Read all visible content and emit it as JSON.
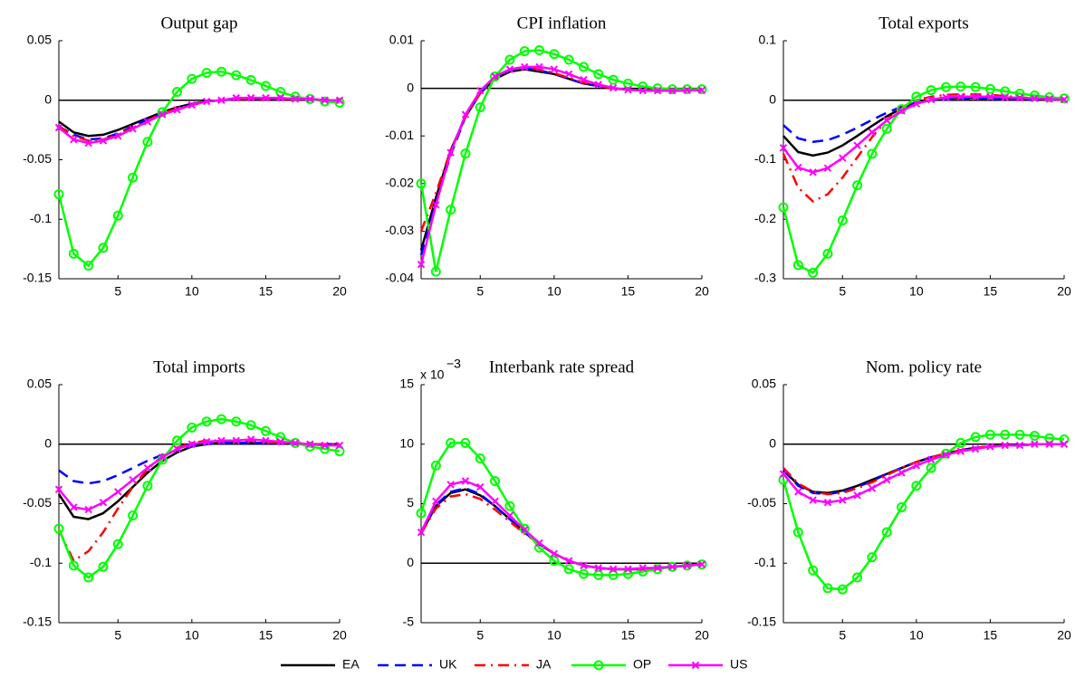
{
  "chart_data": [
    {
      "type": "line",
      "title": "Output gap",
      "x": [
        1,
        2,
        3,
        4,
        5,
        6,
        7,
        8,
        9,
        10,
        11,
        12,
        13,
        14,
        15,
        16,
        17,
        18,
        19,
        20
      ],
      "xlim": [
        1,
        20
      ],
      "xticks": [
        5,
        10,
        15,
        20
      ],
      "ylim": [
        -0.15,
        0.05
      ],
      "yticks": [
        -0.15,
        -0.1,
        -0.05,
        0,
        0.05
      ],
      "series": [
        {
          "values": [
            -0.018,
            -0.027,
            -0.03,
            -0.029,
            -0.025,
            -0.02,
            -0.015,
            -0.01,
            -0.006,
            -0.003,
            -0.001,
            0,
            0.001,
            0.001,
            0.001,
            0.001,
            0.001,
            0.001,
            0,
            0
          ]
        },
        {
          "values": [
            -0.022,
            -0.029,
            -0.033,
            -0.032,
            -0.028,
            -0.022,
            -0.016,
            -0.011,
            -0.007,
            -0.004,
            -0.001,
            0,
            0.001,
            0.001,
            0.001,
            0.001,
            0.001,
            0.001,
            0,
            0
          ]
        },
        {
          "values": [
            -0.022,
            -0.03,
            -0.034,
            -0.033,
            -0.029,
            -0.023,
            -0.017,
            -0.011,
            -0.007,
            -0.004,
            -0.001,
            0,
            0.001,
            0.001,
            0.001,
            0.001,
            0.001,
            0.001,
            0,
            0
          ]
        },
        {
          "values": [
            -0.079,
            -0.129,
            -0.139,
            -0.124,
            -0.097,
            -0.065,
            -0.035,
            -0.01,
            0.007,
            0.018,
            0.023,
            0.024,
            0.021,
            0.017,
            0.012,
            0.007,
            0.003,
            0.001,
            -0.001,
            -0.002
          ]
        },
        {
          "values": [
            -0.023,
            -0.033,
            -0.036,
            -0.034,
            -0.03,
            -0.024,
            -0.018,
            -0.012,
            -0.008,
            -0.004,
            -0.001,
            0,
            0.002,
            0.002,
            0.002,
            0.002,
            0.001,
            0.001,
            0,
            0
          ]
        }
      ]
    },
    {
      "type": "line",
      "title": "CPI inflation",
      "x": [
        1,
        2,
        3,
        4,
        5,
        6,
        7,
        8,
        9,
        10,
        11,
        12,
        13,
        14,
        15,
        16,
        17,
        18,
        19,
        20
      ],
      "xlim": [
        1,
        20
      ],
      "xticks": [
        5,
        10,
        15,
        20
      ],
      "ylim": [
        -0.04,
        0.01
      ],
      "yticks": [
        -0.04,
        -0.03,
        -0.02,
        -0.01,
        0,
        0.01
      ],
      "series": [
        {
          "values": [
            -0.034,
            -0.023,
            -0.013,
            -0.006,
            -0.001,
            0.002,
            0.0035,
            0.004,
            0.0035,
            0.003,
            0.002,
            0.001,
            0.0005,
            0,
            -0.0003,
            -0.0004,
            -0.0005,
            -0.0005,
            -0.0004,
            -0.0004
          ]
        },
        {
          "values": [
            -0.035,
            -0.024,
            -0.014,
            -0.006,
            -0.001,
            0.002,
            0.0038,
            0.0042,
            0.0038,
            0.003,
            0.002,
            0.001,
            0.0005,
            0,
            -0.0003,
            -0.0004,
            -0.0005,
            -0.0005,
            -0.0004,
            -0.0004
          ]
        },
        {
          "values": [
            -0.03,
            -0.022,
            -0.013,
            -0.006,
            -0.001,
            0.002,
            0.004,
            0.0043,
            0.004,
            0.0032,
            0.0022,
            0.0012,
            0.0005,
            0,
            -0.0003,
            -0.0004,
            -0.0005,
            -0.0005,
            -0.0004,
            -0.0004
          ]
        },
        {
          "values": [
            -0.02,
            -0.0385,
            -0.0255,
            -0.0137,
            -0.004,
            0.0025,
            0.006,
            0.0078,
            0.008,
            0.0072,
            0.006,
            0.0045,
            0.003,
            0.0018,
            0.001,
            0.0004,
            0,
            -0.0002,
            -0.0002,
            -0.0002
          ]
        },
        {
          "values": [
            -0.037,
            -0.0245,
            -0.0135,
            -0.0055,
            -0.0005,
            0.0025,
            0.004,
            0.0045,
            0.0045,
            0.004,
            0.003,
            0.0018,
            0.0008,
            0.0001,
            -0.0003,
            -0.0005,
            -0.0005,
            -0.0005,
            -0.0004,
            -0.0004
          ]
        }
      ]
    },
    {
      "type": "line",
      "title": "Total exports",
      "x": [
        1,
        2,
        3,
        4,
        5,
        6,
        7,
        8,
        9,
        10,
        11,
        12,
        13,
        14,
        15,
        16,
        17,
        18,
        19,
        20
      ],
      "xlim": [
        1,
        20
      ],
      "xticks": [
        5,
        10,
        15,
        20
      ],
      "ylim": [
        -0.3,
        0.1
      ],
      "yticks": [
        -0.3,
        -0.2,
        -0.1,
        0,
        0.1
      ],
      "series": [
        {
          "values": [
            -0.06,
            -0.087,
            -0.093,
            -0.088,
            -0.076,
            -0.06,
            -0.043,
            -0.027,
            -0.014,
            -0.005,
            0,
            0.003,
            0.004,
            0.004,
            0.004,
            0.003,
            0.002,
            0.002,
            0.001,
            0.001
          ]
        },
        {
          "values": [
            -0.042,
            -0.064,
            -0.07,
            -0.067,
            -0.058,
            -0.046,
            -0.033,
            -0.021,
            -0.011,
            -0.004,
            0,
            0.002,
            0.003,
            0.003,
            0.003,
            0.002,
            0.002,
            0.001,
            0.001,
            0.001
          ]
        },
        {
          "values": [
            -0.09,
            -0.147,
            -0.17,
            -0.158,
            -0.13,
            -0.096,
            -0.062,
            -0.033,
            -0.012,
            0,
            0.006,
            0.009,
            0.01,
            0.01,
            0.009,
            0.007,
            0.005,
            0.003,
            0.002,
            0.001
          ]
        },
        {
          "values": [
            -0.18,
            -0.277,
            -0.29,
            -0.258,
            -0.202,
            -0.143,
            -0.09,
            -0.048,
            -0.015,
            0.006,
            0.017,
            0.022,
            0.023,
            0.022,
            0.019,
            0.015,
            0.011,
            0.008,
            0.005,
            0.003
          ]
        },
        {
          "values": [
            -0.08,
            -0.113,
            -0.121,
            -0.114,
            -0.097,
            -0.076,
            -0.054,
            -0.034,
            -0.018,
            -0.006,
            0.001,
            0.005,
            0.006,
            0.006,
            0.006,
            0.005,
            0.004,
            0.003,
            0.002,
            0.001
          ]
        }
      ]
    },
    {
      "type": "line",
      "title": "Total imports",
      "x": [
        1,
        2,
        3,
        4,
        5,
        6,
        7,
        8,
        9,
        10,
        11,
        12,
        13,
        14,
        15,
        16,
        17,
        18,
        19,
        20
      ],
      "xlim": [
        1,
        20
      ],
      "xticks": [
        5,
        10,
        15,
        20
      ],
      "ylim": [
        -0.15,
        0.05
      ],
      "yticks": [
        -0.15,
        -0.1,
        -0.05,
        0,
        0.05
      ],
      "series": [
        {
          "values": [
            -0.042,
            -0.061,
            -0.063,
            -0.058,
            -0.048,
            -0.036,
            -0.024,
            -0.014,
            -0.007,
            -0.002,
            0,
            0.001,
            0.001,
            0.001,
            0.001,
            0.001,
            0,
            0,
            0,
            0
          ]
        },
        {
          "values": [
            -0.022,
            -0.031,
            -0.033,
            -0.031,
            -0.026,
            -0.02,
            -0.014,
            -0.009,
            -0.005,
            -0.002,
            0,
            0.001,
            0.001,
            0.001,
            0.001,
            0.001,
            0,
            0,
            0,
            0
          ]
        },
        {
          "values": [
            -0.072,
            -0.098,
            -0.09,
            -0.074,
            -0.054,
            -0.036,
            -0.021,
            -0.01,
            -0.003,
            0.001,
            0.003,
            0.003,
            0.003,
            0.003,
            0.002,
            0.001,
            0.001,
            0,
            0,
            0
          ]
        },
        {
          "values": [
            -0.071,
            -0.102,
            -0.112,
            -0.103,
            -0.084,
            -0.06,
            -0.035,
            -0.013,
            0.003,
            0.014,
            0.019,
            0.021,
            0.019,
            0.016,
            0.011,
            0.006,
            0.001,
            -0.002,
            -0.004,
            -0.006
          ]
        },
        {
          "values": [
            -0.038,
            -0.053,
            -0.055,
            -0.049,
            -0.04,
            -0.03,
            -0.02,
            -0.011,
            -0.004,
            0,
            0.002,
            0.003,
            0.003,
            0.004,
            0.003,
            0.002,
            0.001,
            0,
            -0.001,
            -0.001
          ]
        }
      ]
    },
    {
      "type": "line",
      "title": "Interbank rate spread",
      "y_multiplier": "x 10",
      "y_multiplier_exponent": "−3",
      "x": [
        1,
        2,
        3,
        4,
        5,
        6,
        7,
        8,
        9,
        10,
        11,
        12,
        13,
        14,
        15,
        16,
        17,
        18,
        19,
        20
      ],
      "xlim": [
        1,
        20
      ],
      "xticks": [
        5,
        10,
        15,
        20
      ],
      "ylim": [
        -5,
        15
      ],
      "yticks": [
        -5,
        0,
        5,
        10,
        15
      ],
      "series": [
        {
          "values": [
            2.5,
            4.8,
            5.9,
            6.2,
            5.7,
            4.8,
            3.7,
            2.6,
            1.6,
            0.8,
            0.2,
            -0.2,
            -0.4,
            -0.5,
            -0.5,
            -0.5,
            -0.4,
            -0.3,
            -0.2,
            -0.1
          ]
        },
        {
          "values": [
            2.5,
            4.9,
            6.0,
            6.3,
            5.8,
            4.8,
            3.7,
            2.6,
            1.6,
            0.8,
            0.2,
            -0.2,
            -0.4,
            -0.5,
            -0.5,
            -0.5,
            -0.4,
            -0.3,
            -0.2,
            -0.1
          ]
        },
        {
          "values": [
            2.5,
            4.6,
            5.6,
            5.8,
            5.4,
            4.5,
            3.5,
            2.5,
            1.6,
            0.8,
            0.2,
            -0.2,
            -0.4,
            -0.5,
            -0.5,
            -0.5,
            -0.4,
            -0.3,
            -0.2,
            -0.1
          ]
        },
        {
          "values": [
            4.2,
            8.2,
            10.1,
            10.1,
            8.8,
            6.9,
            4.8,
            2.9,
            1.3,
            0.2,
            -0.5,
            -0.9,
            -1.0,
            -1.0,
            -0.9,
            -0.7,
            -0.5,
            -0.3,
            -0.2,
            -0.1
          ]
        },
        {
          "values": [
            2.6,
            5.2,
            6.6,
            6.9,
            6.4,
            5.2,
            4.0,
            2.8,
            1.7,
            0.8,
            0.2,
            -0.2,
            -0.4,
            -0.5,
            -0.5,
            -0.4,
            -0.4,
            -0.3,
            -0.2,
            -0.1
          ]
        }
      ]
    },
    {
      "type": "line",
      "title": "Nom. policy rate",
      "x": [
        1,
        2,
        3,
        4,
        5,
        6,
        7,
        8,
        9,
        10,
        11,
        12,
        13,
        14,
        15,
        16,
        17,
        18,
        19,
        20
      ],
      "xlim": [
        1,
        20
      ],
      "xticks": [
        5,
        10,
        15,
        20
      ],
      "ylim": [
        -0.15,
        0.05
      ],
      "yticks": [
        -0.15,
        -0.1,
        -0.05,
        0,
        0.05
      ],
      "series": [
        {
          "values": [
            -0.022,
            -0.034,
            -0.04,
            -0.041,
            -0.039,
            -0.035,
            -0.03,
            -0.025,
            -0.02,
            -0.015,
            -0.011,
            -0.008,
            -0.005,
            -0.003,
            -0.002,
            -0.001,
            -0.001,
            0,
            0,
            0
          ]
        },
        {
          "values": [
            -0.022,
            -0.035,
            -0.041,
            -0.042,
            -0.04,
            -0.036,
            -0.031,
            -0.025,
            -0.02,
            -0.015,
            -0.011,
            -0.008,
            -0.005,
            -0.003,
            -0.002,
            -0.001,
            -0.001,
            0,
            0,
            0
          ]
        },
        {
          "values": [
            -0.02,
            -0.033,
            -0.04,
            -0.042,
            -0.041,
            -0.037,
            -0.032,
            -0.026,
            -0.02,
            -0.015,
            -0.011,
            -0.008,
            -0.005,
            -0.003,
            -0.002,
            -0.001,
            -0.001,
            0,
            0,
            0
          ]
        },
        {
          "values": [
            -0.03,
            -0.074,
            -0.106,
            -0.121,
            -0.122,
            -0.112,
            -0.095,
            -0.074,
            -0.053,
            -0.035,
            -0.02,
            -0.008,
            0.001,
            0.006,
            0.008,
            0.008,
            0.008,
            0.007,
            0.005,
            0.004
          ]
        },
        {
          "values": [
            -0.025,
            -0.04,
            -0.047,
            -0.049,
            -0.047,
            -0.043,
            -0.037,
            -0.03,
            -0.024,
            -0.018,
            -0.013,
            -0.009,
            -0.006,
            -0.004,
            -0.002,
            -0.001,
            -0.001,
            0,
            0,
            0
          ]
        }
      ]
    }
  ],
  "legend": [
    {
      "name": "EA",
      "color": "#000000",
      "style": "solid",
      "marker": "none"
    },
    {
      "name": "UK",
      "color": "#0000ff",
      "style": "dashed",
      "marker": "none"
    },
    {
      "name": "JA",
      "color": "#ff0000",
      "style": "dashdot",
      "marker": "none"
    },
    {
      "name": "OP",
      "color": "#00ff00",
      "style": "solid",
      "marker": "circle"
    },
    {
      "name": "US",
      "color": "#ff00ff",
      "style": "solid",
      "marker": "x"
    }
  ]
}
